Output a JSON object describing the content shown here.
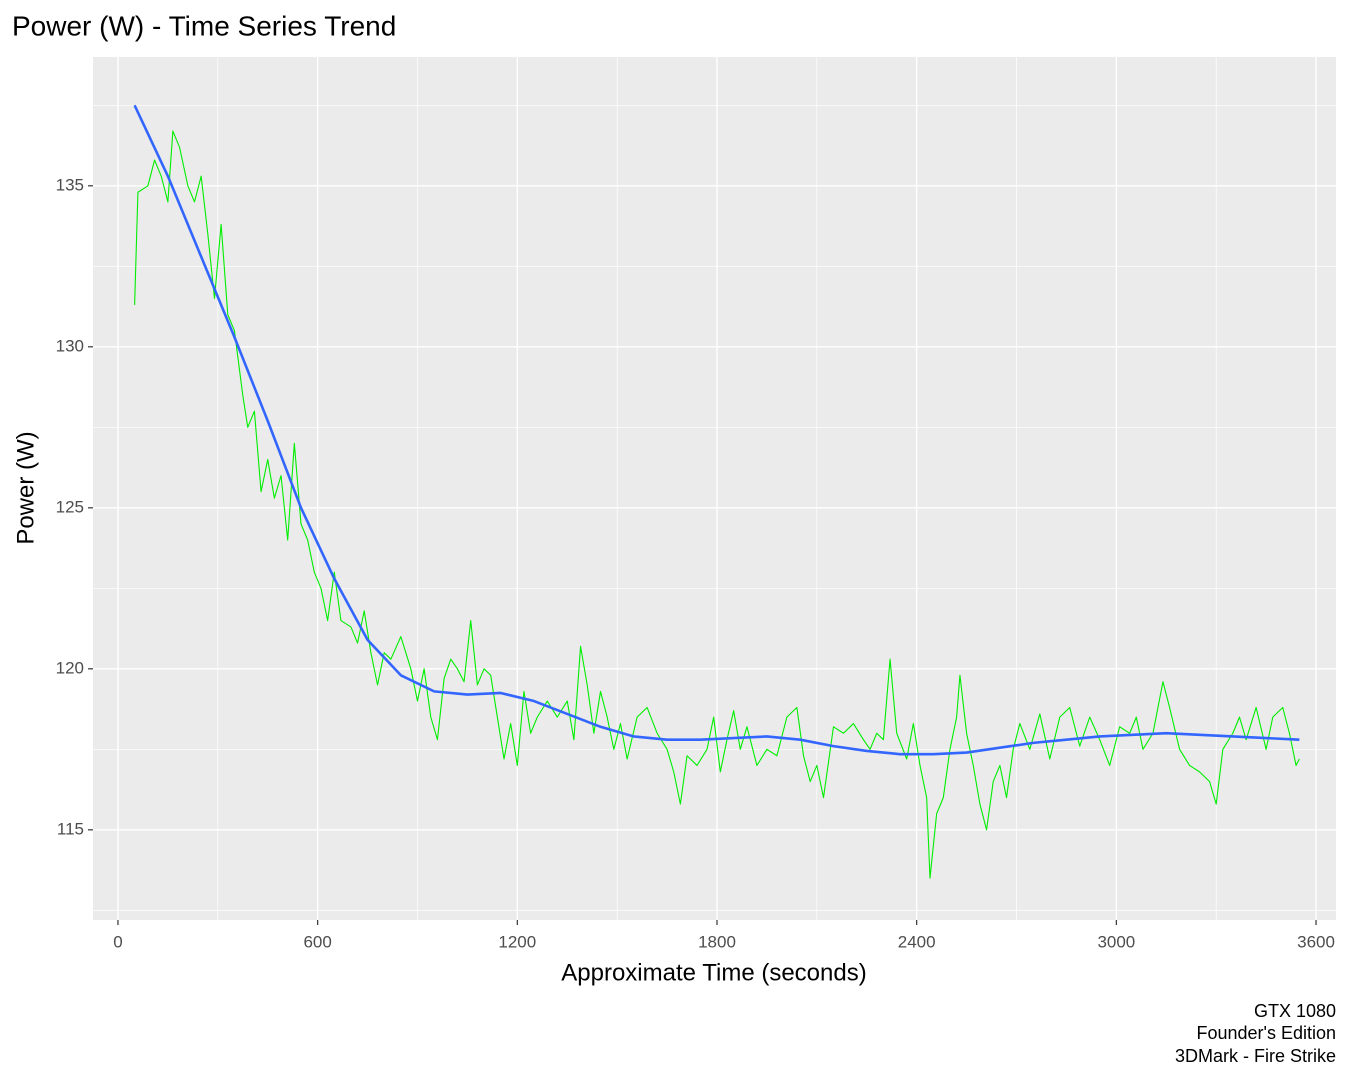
{
  "chart_data": {
    "type": "line",
    "title": "Power (W) - Time Series Trend",
    "x_label": "Approximate Time (seconds)",
    "y_label": "Power (W)",
    "caption": [
      "GTX 1080",
      "Founder's Edition",
      "3DMark - Fire Strike"
    ],
    "xlim": [
      -75,
      3660
    ],
    "ylim": [
      112.2,
      139.0
    ],
    "xticks": [
      0,
      600,
      1200,
      1800,
      2400,
      3000,
      3600
    ],
    "yticks": [
      115,
      120,
      125,
      130,
      135
    ],
    "x_minor_ticks": [
      300,
      900,
      1500,
      2100,
      2700,
      3300
    ],
    "y_minor_ticks": [
      112.5,
      117.5,
      122.5,
      127.5,
      132.5,
      137.5
    ],
    "grid": true,
    "series": [
      {
        "color": "#00ee00",
        "x": [
          50,
          60,
          90,
          110,
          130,
          150,
          165,
          185,
          210,
          230,
          250,
          270,
          290,
          310,
          330,
          350,
          375,
          390,
          410,
          430,
          450,
          470,
          490,
          510,
          530,
          550,
          570,
          590,
          610,
          630,
          650,
          670,
          700,
          720,
          740,
          760,
          780,
          800,
          820,
          850,
          880,
          900,
          920,
          940,
          960,
          980,
          1000,
          1020,
          1040,
          1060,
          1080,
          1100,
          1120,
          1140,
          1160,
          1180,
          1200,
          1220,
          1240,
          1260,
          1290,
          1320,
          1350,
          1370,
          1390,
          1410,
          1430,
          1450,
          1470,
          1490,
          1510,
          1530,
          1560,
          1590,
          1620,
          1650,
          1670,
          1690,
          1710,
          1740,
          1770,
          1790,
          1810,
          1830,
          1850,
          1870,
          1890,
          1920,
          1950,
          1980,
          2010,
          2040,
          2060,
          2080,
          2100,
          2120,
          2150,
          2180,
          2210,
          2240,
          2260,
          2280,
          2300,
          2320,
          2340,
          2370,
          2390,
          2410,
          2430,
          2440,
          2460,
          2480,
          2500,
          2520,
          2530,
          2550,
          2570,
          2590,
          2610,
          2630,
          2650,
          2670,
          2690,
          2710,
          2740,
          2770,
          2800,
          2830,
          2860,
          2890,
          2920,
          2950,
          2980,
          3010,
          3040,
          3060,
          3080,
          3110,
          3140,
          3160,
          3190,
          3220,
          3250,
          3280,
          3300,
          3320,
          3350,
          3370,
          3390,
          3420,
          3450,
          3470,
          3500,
          3520,
          3540,
          3550
        ],
        "values": [
          131.3,
          134.8,
          135.0,
          135.8,
          135.3,
          134.5,
          136.7,
          136.2,
          135.0,
          134.5,
          135.3,
          133.5,
          131.5,
          133.8,
          131.0,
          130.5,
          128.5,
          127.5,
          128.0,
          125.5,
          126.5,
          125.3,
          126.0,
          124.0,
          127.0,
          124.5,
          124.0,
          123.0,
          122.5,
          121.5,
          123.0,
          121.5,
          121.3,
          120.8,
          121.8,
          120.5,
          119.5,
          120.5,
          120.3,
          121.0,
          120.0,
          119.0,
          120.0,
          118.5,
          117.8,
          119.7,
          120.3,
          120.0,
          119.6,
          121.5,
          119.5,
          120.0,
          119.8,
          118.5,
          117.2,
          118.3,
          117.0,
          119.3,
          118.0,
          118.5,
          119.0,
          118.5,
          119.0,
          117.8,
          120.7,
          119.5,
          118.0,
          119.3,
          118.5,
          117.5,
          118.3,
          117.2,
          118.5,
          118.8,
          118.0,
          117.5,
          116.8,
          115.8,
          117.3,
          117.0,
          117.5,
          118.5,
          116.8,
          117.8,
          118.7,
          117.5,
          118.2,
          117.0,
          117.5,
          117.3,
          118.5,
          118.8,
          117.3,
          116.5,
          117.0,
          116.0,
          118.2,
          118.0,
          118.3,
          117.8,
          117.5,
          118.0,
          117.8,
          120.3,
          118.0,
          117.2,
          118.3,
          117.0,
          116.0,
          113.5,
          115.5,
          116.0,
          117.5,
          118.5,
          119.8,
          118.0,
          117.0,
          115.8,
          115.0,
          116.5,
          117.0,
          116.0,
          117.5,
          118.3,
          117.5,
          118.6,
          117.2,
          118.5,
          118.8,
          117.6,
          118.5,
          117.8,
          117.0,
          118.2,
          118.0,
          118.5,
          117.5,
          118.0,
          119.6,
          118.8,
          117.5,
          117.0,
          116.8,
          116.5,
          115.8,
          117.5,
          118.0,
          118.5,
          117.8,
          118.8,
          117.5,
          118.5,
          118.8,
          118.0,
          117.0,
          117.2
        ]
      },
      {
        "color": "#3366ff",
        "x": [
          50,
          150,
          250,
          350,
          450,
          550,
          650,
          750,
          850,
          950,
          1050,
          1150,
          1250,
          1350,
          1450,
          1550,
          1650,
          1750,
          1850,
          1950,
          2050,
          2150,
          2250,
          2350,
          2450,
          2550,
          2650,
          2750,
          2850,
          2950,
          3050,
          3150,
          3250,
          3350,
          3450,
          3550
        ],
        "values": [
          137.5,
          135.3,
          132.8,
          130.3,
          127.7,
          125.0,
          122.8,
          120.9,
          119.8,
          119.3,
          119.2,
          119.25,
          119.0,
          118.6,
          118.2,
          117.9,
          117.8,
          117.8,
          117.85,
          117.9,
          117.8,
          117.6,
          117.45,
          117.35,
          117.35,
          117.4,
          117.55,
          117.7,
          117.8,
          117.9,
          117.95,
          118.0,
          117.95,
          117.9,
          117.85,
          117.8
        ]
      }
    ]
  }
}
